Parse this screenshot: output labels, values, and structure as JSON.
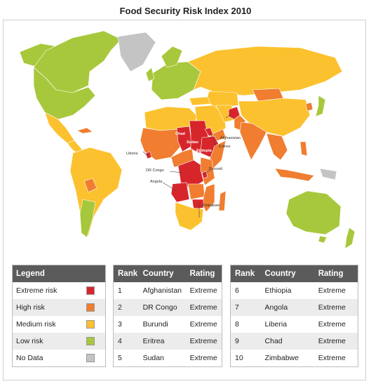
{
  "title": "Food Security Risk Index 2010",
  "colors": {
    "extreme": "#d7262b",
    "high": "#f07d30",
    "medium": "#fcc12e",
    "low": "#a7c83c",
    "nodata": "#c4c4c4",
    "border": "#ffffff"
  },
  "map_labels": {
    "chad": "Chad",
    "sudan": "Sudan",
    "ethiopia": "Ethiopia",
    "afghanistan": "Afghanistan",
    "eritrea": "Eritrea",
    "liberia": "Liberia",
    "drcongo": "DR Congo",
    "burundi": "Burundi",
    "angola": "Angola",
    "zimbabwe": "Zimbabwe"
  },
  "legend": {
    "header": "Legend",
    "items": [
      {
        "label": "Extreme risk",
        "color": "#d7262b"
      },
      {
        "label": "High risk",
        "color": "#f07d30"
      },
      {
        "label": "Medium risk",
        "color": "#fcc12e"
      },
      {
        "label": "Low risk",
        "color": "#a7c83c"
      },
      {
        "label": "No Data",
        "color": "#c4c4c4"
      }
    ]
  },
  "ranking": {
    "headers": {
      "rank": "Rank",
      "country": "Country",
      "rating": "Rating"
    },
    "rows": [
      {
        "rank": "1",
        "country": "Afghanistan",
        "rating": "Extreme"
      },
      {
        "rank": "2",
        "country": "DR Congo",
        "rating": "Extreme"
      },
      {
        "rank": "3",
        "country": "Burundi",
        "rating": "Extreme"
      },
      {
        "rank": "4",
        "country": "Eritrea",
        "rating": "Extreme"
      },
      {
        "rank": "5",
        "country": "Sudan",
        "rating": "Extreme"
      },
      {
        "rank": "6",
        "country": "Ethiopia",
        "rating": "Extreme"
      },
      {
        "rank": "7",
        "country": "Angola",
        "rating": "Extreme"
      },
      {
        "rank": "8",
        "country": "Liberia",
        "rating": "Extreme"
      },
      {
        "rank": "9",
        "country": "Chad",
        "rating": "Extreme"
      },
      {
        "rank": "10",
        "country": "Zimbabwe",
        "rating": "Extreme"
      }
    ]
  }
}
